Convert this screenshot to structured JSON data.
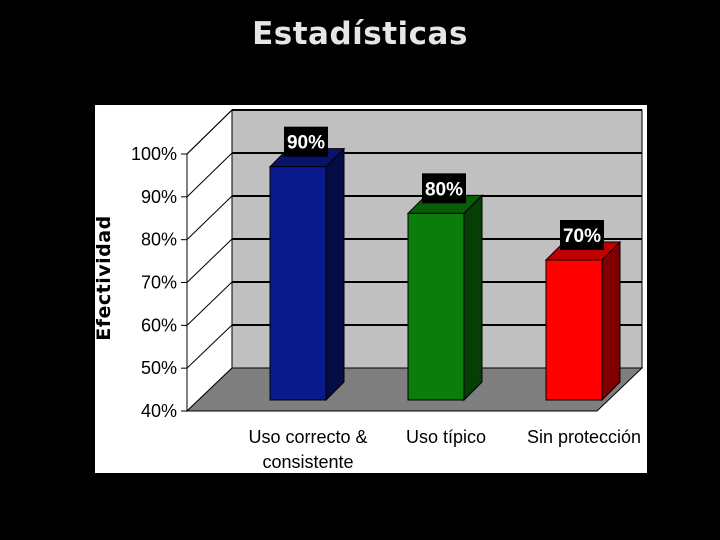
{
  "slide": {
    "title": "Estadísticas"
  },
  "chart_data": {
    "type": "bar",
    "title": "",
    "xlabel": "",
    "ylabel": "Efectividad",
    "ylim": [
      40,
      100
    ],
    "yticks": [
      "40%",
      "50%",
      "60%",
      "70%",
      "80%",
      "90%",
      "100%"
    ],
    "categories": [
      "Uso correcto & consistente",
      "Uso típico",
      "Sin protección"
    ],
    "category_lines": [
      [
        "Uso correcto &",
        "consistente"
      ],
      [
        "Uso típico"
      ],
      [
        "Sin protección"
      ]
    ],
    "values": [
      90,
      80,
      70
    ],
    "data_labels": [
      "90%",
      "80%",
      "70%"
    ],
    "colors": [
      "#0a1a8c",
      "#0b7d0b",
      "#ff0000"
    ],
    "grid": true,
    "style": "3d"
  }
}
